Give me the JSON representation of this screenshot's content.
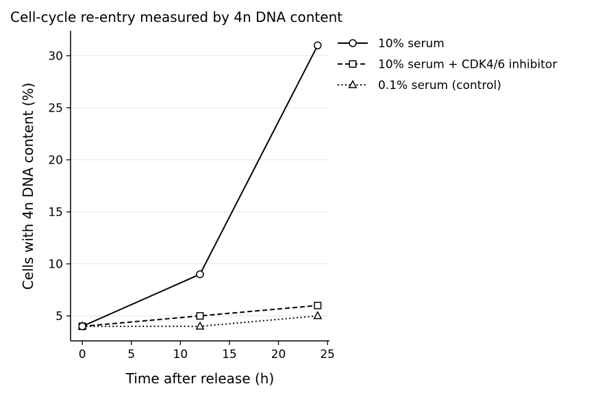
{
  "chart_data": {
    "type": "line",
    "title": "Cell-cycle re-entry measured by 4n DNA content",
    "xlabel": "Time after release (h)",
    "ylabel": "Cells with 4n DNA content (%)",
    "xlim": [
      -1.2,
      25.2
    ],
    "ylim": [
      2.6,
      32.4
    ],
    "xticks": [
      0,
      5,
      10,
      15,
      20,
      25
    ],
    "yticks": [
      5,
      10,
      15,
      20,
      25,
      30
    ],
    "grid": "horizontal",
    "legend_position": "outside-top-right",
    "x": [
      0,
      12,
      24
    ],
    "series": [
      {
        "name": "10% serum",
        "values": [
          4,
          9,
          31
        ],
        "marker": "circle",
        "linestyle": "solid"
      },
      {
        "name": "10% serum + CDK4/6 inhibitor",
        "values": [
          4,
          5,
          6
        ],
        "marker": "square",
        "linestyle": "dashed"
      },
      {
        "name": "0.1% serum (control)",
        "values": [
          4,
          4,
          5
        ],
        "marker": "triangle",
        "linestyle": "dotted"
      }
    ]
  },
  "colors": {
    "line": "#000000",
    "marker_fill": "#ffffff",
    "grid": "#e6e6e6"
  }
}
